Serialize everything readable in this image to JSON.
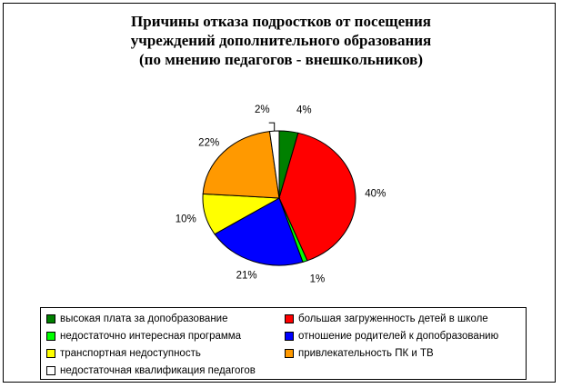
{
  "chart_data": {
    "type": "pie",
    "title_lines": [
      "Причины отказа подростков от посещения",
      "учреждений дополнительного образования",
      "(по мнению педагогов - внешкольников)"
    ],
    "slices": [
      {
        "label": "высокая плата за допобразование",
        "value": 4,
        "display": "4%",
        "color": "#008000"
      },
      {
        "label": "большая загруженность детей в школе",
        "value": 40,
        "display": "40%",
        "color": "#ff0000"
      },
      {
        "label": "недостаточно интересная программа",
        "value": 1,
        "display": "1%",
        "color": "#00ff00"
      },
      {
        "label": "отношение родителей к допобразованию",
        "value": 21,
        "display": "21%",
        "color": "#0000ff"
      },
      {
        "label": "транспортная недоступность",
        "value": 10,
        "display": "10%",
        "color": "#ffff00"
      },
      {
        "label": "привлекательность ПК и ТВ",
        "value": 22,
        "display": "22%",
        "color": "#ff9900"
      },
      {
        "label": "недостаточная квалификация педагогов",
        "value": 2,
        "display": "2%",
        "color": "#ffffff"
      }
    ],
    "legend_position": "bottom"
  }
}
